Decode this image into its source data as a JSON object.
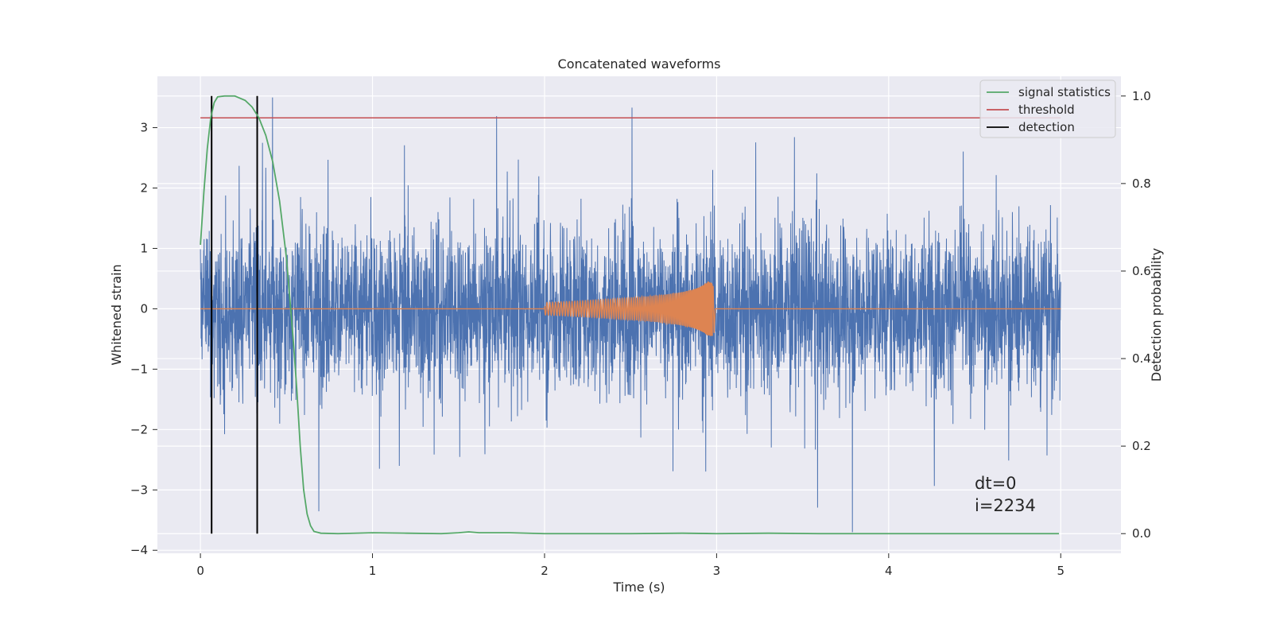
{
  "chart_data": {
    "type": "line",
    "title": "Concatenated waveforms",
    "xlabel": "Time (s)",
    "ylabel": "Whitened strain",
    "y2label": "Detection probability",
    "xlim": [
      -0.25,
      5.35
    ],
    "ylim": [
      -4.05,
      3.85
    ],
    "y2lim": [
      -0.045,
      1.045
    ],
    "xticks": [
      0,
      1,
      2,
      3,
      4,
      5
    ],
    "xtick_labels": [
      "0",
      "1",
      "2",
      "3",
      "4",
      "5"
    ],
    "yticks": [
      -4,
      -3,
      -2,
      -1,
      0,
      1,
      2,
      3
    ],
    "ytick_labels": [
      "−4",
      "−3",
      "−2",
      "−1",
      "0",
      "1",
      "2",
      "3"
    ],
    "y2ticks": [
      0.0,
      0.2,
      0.4,
      0.6,
      0.8,
      1.0
    ],
    "y2tick_labels": [
      "0.0",
      "0.2",
      "0.4",
      "0.6",
      "0.8",
      "1.0"
    ],
    "grid": true,
    "legend_position": "top-right",
    "colors": {
      "background": "#eaeaf2",
      "grid": "#ffffff",
      "strain": "#4c72b0",
      "injection": "#dd8452",
      "signal_statistics": "#55a868",
      "threshold": "#c44e52",
      "detection": "#000000"
    },
    "series": [
      {
        "name": "signal statistics",
        "axis": "right",
        "x": [
          0.0,
          0.02,
          0.04,
          0.06,
          0.08,
          0.1,
          0.14,
          0.2,
          0.26,
          0.3,
          0.34,
          0.38,
          0.42,
          0.46,
          0.5,
          0.54,
          0.56,
          0.58,
          0.6,
          0.62,
          0.64,
          0.66,
          0.7,
          0.8,
          1.0,
          1.2,
          1.4,
          1.5,
          1.56,
          1.62,
          1.8,
          2.0,
          2.5,
          2.8,
          3.0,
          3.3,
          3.6,
          4.0,
          4.5,
          4.99
        ],
        "values": [
          0.66,
          0.78,
          0.88,
          0.95,
          0.985,
          0.998,
          1.0,
          1.0,
          0.99,
          0.975,
          0.95,
          0.91,
          0.85,
          0.76,
          0.63,
          0.44,
          0.33,
          0.2,
          0.1,
          0.045,
          0.018,
          0.005,
          0.001,
          0.0,
          0.002,
          0.001,
          0.0,
          0.002,
          0.004,
          0.002,
          0.002,
          0.0,
          0.0,
          0.001,
          0.0,
          0.001,
          0.0,
          0.0,
          0.0,
          0.0
        ]
      },
      {
        "name": "threshold",
        "axis": "right",
        "x": [
          0.0,
          5.0
        ],
        "values": [
          0.95,
          0.95
        ]
      },
      {
        "name": "detection",
        "axis": "right",
        "type": "vlines",
        "x": [
          0.065,
          0.33
        ],
        "ymin": 0.0,
        "ymax": 1.0
      },
      {
        "name": "",
        "axis": "left",
        "description_values": "whitened strain noise",
        "x_range": [
          0.0,
          5.0
        ],
        "approx_core_amplitude": 0.85,
        "approx_max": 3.5,
        "approx_min": -3.7
      },
      {
        "name": "",
        "axis": "left",
        "description_values": "injected chirp waveform",
        "x_range": [
          2.0,
          3.0
        ],
        "start_amplitude": 0.1,
        "peak_amplitude": 0.45,
        "peak_time": 2.98
      }
    ],
    "annotations": [
      "dt=0",
      "i=2234"
    ]
  }
}
